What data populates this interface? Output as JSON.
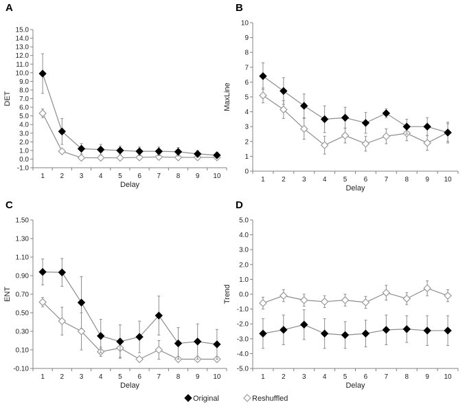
{
  "legend": {
    "original": "Original",
    "reshuffled": "Reshuffled",
    "original_marker": "filled-diamond-icon",
    "reshuffled_marker": "open-diamond-icon"
  },
  "colors": {
    "original": "#000000",
    "reshuffled": "#9a9a9a",
    "line": "#8c8c8c",
    "axis": "#808080"
  },
  "chart_data": [
    {
      "id": "A",
      "panel_label": "A",
      "type": "line",
      "xlabel": "Delay",
      "ylabel": "DET",
      "categories": [
        "1",
        "2",
        "3",
        "4",
        "5",
        "6",
        "7",
        "8",
        "9",
        "10"
      ],
      "ylim": [
        -1,
        15
      ],
      "yticks": [
        "-1.0",
        "0.0",
        "1.0",
        "2.0",
        "3.0",
        "4.0",
        "5.0",
        "6.0",
        "7.0",
        "8.0",
        "9.0",
        "10.0",
        "11.0",
        "12.0",
        "13.0",
        "14.0",
        "15.0"
      ],
      "series": [
        {
          "name": "Original",
          "values": [
            9.9,
            3.2,
            1.2,
            1.1,
            1.0,
            0.9,
            0.9,
            0.85,
            0.6,
            0.45
          ],
          "errors": [
            2.3,
            1.5,
            0.6,
            0.6,
            0.5,
            0.5,
            0.5,
            0.5,
            0.4,
            0.3
          ]
        },
        {
          "name": "Reshuffled",
          "values": [
            5.3,
            0.9,
            0.15,
            0.15,
            0.15,
            0.2,
            0.25,
            0.2,
            0.2,
            0.2
          ],
          "errors": [
            0.5,
            0.2,
            0.1,
            0.1,
            0.1,
            0.1,
            0.1,
            0.1,
            0.1,
            0.1
          ]
        }
      ]
    },
    {
      "id": "B",
      "panel_label": "B",
      "type": "line",
      "xlabel": "Delay",
      "ylabel": "MaxLine",
      "categories": [
        "1",
        "2",
        "3",
        "4",
        "5",
        "6",
        "7",
        "8",
        "9",
        "10"
      ],
      "ylim": [
        0,
        10
      ],
      "yticks": [
        "0",
        "1",
        "2",
        "3",
        "4",
        "5",
        "6",
        "7",
        "8",
        "9",
        "10"
      ],
      "series": [
        {
          "name": "Original",
          "values": [
            6.4,
            5.4,
            4.4,
            3.5,
            3.6,
            3.25,
            3.9,
            3.0,
            3.0,
            2.6
          ],
          "errors": [
            0.9,
            0.9,
            0.8,
            0.9,
            0.7,
            0.7,
            0.3,
            0.5,
            0.6,
            0.7
          ]
        },
        {
          "name": "Reshuffled",
          "values": [
            5.1,
            4.15,
            2.85,
            1.75,
            2.4,
            1.85,
            2.35,
            2.55,
            1.9,
            2.6
          ],
          "errors": [
            0.5,
            0.6,
            0.7,
            0.6,
            0.5,
            0.5,
            0.5,
            0.5,
            0.5,
            0.6
          ]
        }
      ]
    },
    {
      "id": "C",
      "panel_label": "C",
      "type": "line",
      "xlabel": "Delay",
      "ylabel": "ENT",
      "categories": [
        "1",
        "2",
        "3",
        "4",
        "5",
        "6",
        "7",
        "8",
        "9",
        "10"
      ],
      "ylim": [
        -0.1,
        1.5
      ],
      "yticks": [
        "-0.10",
        "0.10",
        "0.30",
        "0.50",
        "0.70",
        "0.90",
        "1.10",
        "1.30",
        "1.50"
      ],
      "series": [
        {
          "name": "Original",
          "values": [
            0.94,
            0.935,
            0.61,
            0.25,
            0.19,
            0.24,
            0.47,
            0.17,
            0.19,
            0.16
          ],
          "errors": [
            0.14,
            0.15,
            0.28,
            0.18,
            0.18,
            0.17,
            0.21,
            0.17,
            0.19,
            0.16
          ]
        },
        {
          "name": "Reshuffled",
          "values": [
            0.615,
            0.41,
            0.3,
            0.08,
            0.12,
            0.0,
            0.1,
            0.0,
            0.0,
            0.0
          ],
          "errors": [
            0.05,
            0.15,
            0.2,
            0.05,
            0.1,
            0.02,
            0.1,
            0.02,
            0.02,
            0.02
          ]
        }
      ]
    },
    {
      "id": "D",
      "panel_label": "D",
      "type": "line",
      "xlabel": "Delay",
      "ylabel": "Trend",
      "categories": [
        "1",
        "2",
        "3",
        "4",
        "5",
        "6",
        "7",
        "8",
        "9",
        "10"
      ],
      "ylim": [
        -5,
        5
      ],
      "yticks": [
        "-5.0",
        "-4.0",
        "-3.0",
        "-2.0",
        "-1.0",
        "0.0",
        "1.0",
        "2.0",
        "3.0",
        "4.0",
        "5.0"
      ],
      "series": [
        {
          "name": "Original",
          "values": [
            -2.65,
            -2.4,
            -2.05,
            -2.65,
            -2.75,
            -2.65,
            -2.4,
            -2.35,
            -2.45,
            -2.45
          ],
          "errors": [
            1.0,
            1.0,
            1.0,
            1.0,
            0.9,
            0.9,
            1.0,
            0.9,
            1.0,
            1.0
          ]
        },
        {
          "name": "Reshuffled",
          "values": [
            -0.6,
            -0.1,
            -0.4,
            -0.5,
            -0.4,
            -0.55,
            0.1,
            -0.3,
            0.4,
            -0.1
          ],
          "errors": [
            0.4,
            0.4,
            0.4,
            0.4,
            0.4,
            0.4,
            0.5,
            0.4,
            0.5,
            0.4
          ]
        }
      ]
    }
  ]
}
